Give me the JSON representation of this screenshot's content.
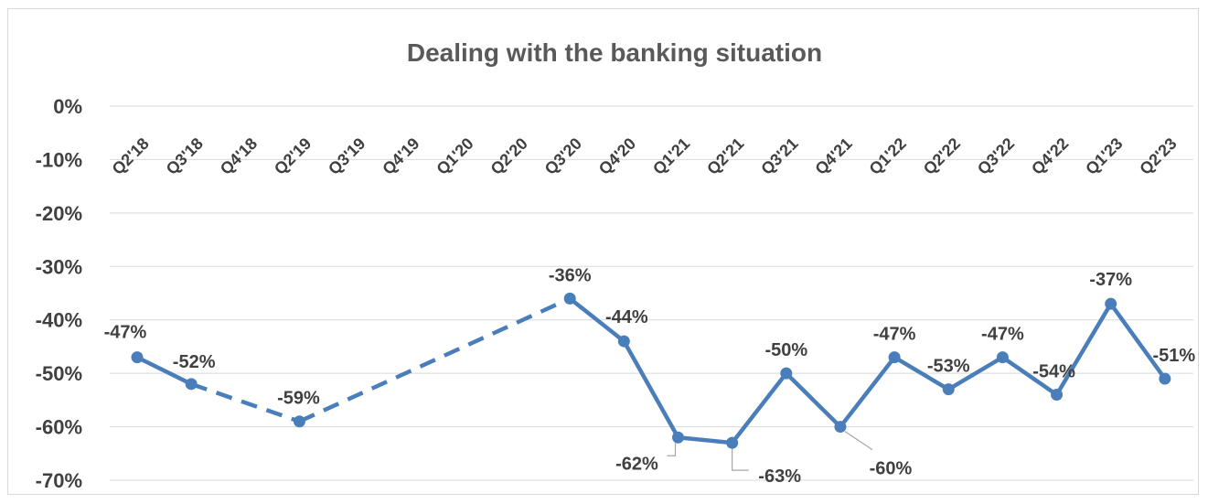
{
  "chart_data": {
    "type": "line",
    "title": "Dealing with the banking situation",
    "xlabel": "",
    "ylabel": "",
    "ylim": [
      -70,
      0
    ],
    "yticks": [
      "0%",
      "-10%",
      "-20%",
      "-30%",
      "-40%",
      "-50%",
      "-60%",
      "-70%"
    ],
    "grid": true,
    "legend": "none",
    "color": "#4a7ebb",
    "categories": [
      "Q2'18",
      "Q3'18",
      "Q4'18",
      "Q2'19",
      "Q3'19",
      "Q4'19",
      "Q1'20",
      "Q2'20",
      "Q3'20",
      "Q4'20",
      "Q1'21",
      "Q2'21",
      "Q3'21",
      "Q4'21",
      "Q1'22",
      "Q2'22",
      "Q3'22",
      "Q4'22",
      "Q1'23",
      "Q2'23"
    ],
    "series": [
      {
        "values": [
          -47,
          -52,
          null,
          -59,
          null,
          null,
          null,
          null,
          -36,
          -44,
          -62,
          -63,
          -50,
          -60,
          -47,
          -53,
          -47,
          -54,
          -37,
          -51
        ],
        "labels": [
          "-47%",
          "-52%",
          "",
          "-59%",
          "",
          "",
          "",
          "",
          "-36%",
          "-44%",
          "-62%",
          "-63%",
          "-50%",
          "-60%",
          "-47%",
          "-53%",
          "-47%",
          "-54%",
          "-37%",
          "-51%"
        ]
      }
    ]
  }
}
